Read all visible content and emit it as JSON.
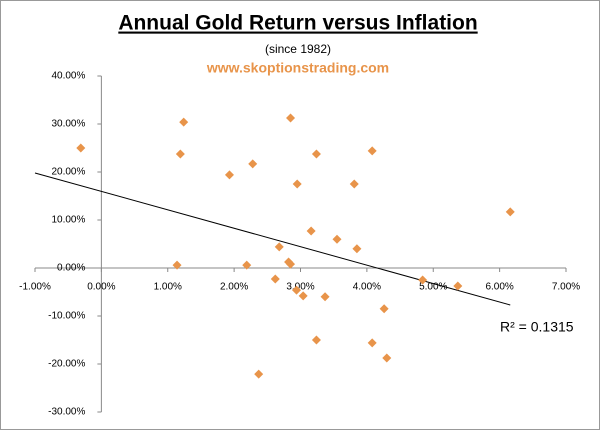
{
  "chart_data": {
    "type": "scatter",
    "title": "Annual Gold Return versus Inflation",
    "subtitle": "(since 1982)",
    "source": "www.skoptionstrading.com",
    "annotation": "R² = 0.1315",
    "series": [
      {
        "color": "#e8944a",
        "x": [
          -0.31,
          1.24,
          1.19,
          1.93,
          2.28,
          2.85,
          2.95,
          3.24,
          3.81,
          4.08,
          3.16,
          3.55,
          3.85,
          2.68,
          2.82,
          2.85,
          1.14,
          2.19,
          2.62,
          2.94,
          3.04,
          3.37,
          4.26,
          4.84,
          5.37,
          6.16,
          3.24,
          4.08,
          4.3,
          2.37
        ],
        "values": [
          25.0,
          30.4,
          23.75,
          19.4,
          21.7,
          31.25,
          17.5,
          23.75,
          17.5,
          24.4,
          7.7,
          6.0,
          4.0,
          4.4,
          1.25,
          0.8,
          0.6,
          0.6,
          -2.3,
          -4.6,
          -5.8,
          -6.0,
          -8.5,
          -2.5,
          -3.75,
          11.7,
          -15.0,
          -15.6,
          -18.75,
          -22.1
        ]
      }
    ],
    "trendline": {
      "x": [
        -1,
        6.16
      ],
      "values": [
        19.8,
        -7.7
      ],
      "color": "#000000"
    },
    "xlim": [
      -1,
      7
    ],
    "ylim": [
      -30,
      40
    ],
    "xticks": [
      {
        "value": -1,
        "label": "-1.00%"
      },
      {
        "value": 0,
        "label": "0.00%"
      },
      {
        "value": 1,
        "label": "1.00%"
      },
      {
        "value": 2,
        "label": "2.00%"
      },
      {
        "value": 3,
        "label": "3.00%"
      },
      {
        "value": 4,
        "label": "4.00%"
      },
      {
        "value": 5,
        "label": "5.00%"
      },
      {
        "value": 6,
        "label": "6.00%"
      },
      {
        "value": 7,
        "label": "7.00%"
      }
    ],
    "yticks": [
      {
        "value": -30,
        "label": "-30.00%"
      },
      {
        "value": -20,
        "label": "-20.00%"
      },
      {
        "value": -10,
        "label": "-10.00%"
      },
      {
        "value": 0,
        "label": "0.00%"
      },
      {
        "value": 10,
        "label": "10.00%"
      },
      {
        "value": 20,
        "label": "20.00%"
      },
      {
        "value": 30,
        "label": "30.00%"
      },
      {
        "value": 40,
        "label": "40.00%"
      }
    ]
  }
}
